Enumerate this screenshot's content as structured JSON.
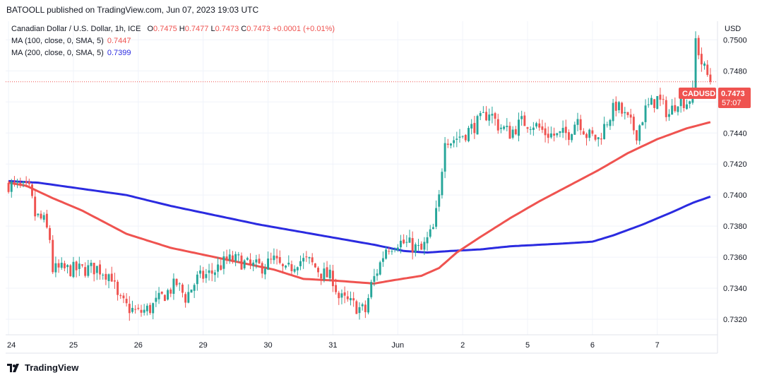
{
  "header": {
    "published_by": "BATOOLL published on TradingView.com, Jun 07, 2023 19:03 UTC"
  },
  "legend": {
    "symbol_title": "Canadian Dollar / U.S. Dollar, 1h, ICE",
    "o_label": "O",
    "o_value": "0.7475",
    "h_label": "H",
    "h_value": "0.7477",
    "l_label": "L",
    "l_value": "0.7473",
    "c_label": "C",
    "c_value": "0.7473",
    "change": "+0.0001 (+0.01%)",
    "ma100_label": "MA (100, close, 0, SMA, 5)",
    "ma100_value": "0.7447",
    "ma200_label": "MA (200, close, 0, SMA, 5)",
    "ma200_value": "0.7399"
  },
  "price_axis": {
    "currency": "USD",
    "tag_symbol": "CADUSD",
    "tag_price": "0.7473",
    "tag_countdown": "57:07"
  },
  "footer": {
    "brand": "TradingView"
  },
  "colors": {
    "up": "#26a69a",
    "down": "#ef5350",
    "ma100": "#ef5350",
    "ma200": "#2b2be0",
    "grid": "#f0f3fa"
  },
  "chart_data": {
    "type": "candlestick",
    "symbol": "CADUSD",
    "ylim": [
      0.731,
      0.7512
    ],
    "yticks": [
      0.732,
      0.734,
      0.736,
      0.738,
      0.74,
      0.742,
      0.744,
      0.746,
      0.748,
      0.75
    ],
    "ytick_labels": [
      "0.7320",
      "0.7340",
      "0.7360",
      "0.7380",
      "0.7400",
      "0.7420",
      "0.7440",
      "0.7460",
      "0.7480",
      "0.7500"
    ],
    "xticks": [
      {
        "label": "24",
        "bar": 0
      },
      {
        "label": "25",
        "bar": 22
      },
      {
        "label": "26",
        "bar": 44
      },
      {
        "label": "29",
        "bar": 66
      },
      {
        "label": "30",
        "bar": 88
      },
      {
        "label": "31",
        "bar": 110
      },
      {
        "label": "Jun",
        "bar": 132
      },
      {
        "label": "2",
        "bar": 154
      },
      {
        "label": "5",
        "bar": 176
      },
      {
        "label": "6",
        "bar": 198
      },
      {
        "label": "7",
        "bar": 220
      }
    ],
    "last_price": 0.7473,
    "close_anchors": [
      [
        0,
        0.7407
      ],
      [
        4,
        0.7405
      ],
      [
        7,
        0.7403
      ],
      [
        8,
        0.7396
      ],
      [
        9,
        0.7387
      ],
      [
        12,
        0.7383
      ],
      [
        14,
        0.7372
      ],
      [
        15,
        0.7352
      ],
      [
        20,
        0.7352
      ],
      [
        25,
        0.7352
      ],
      [
        30,
        0.7353
      ],
      [
        35,
        0.7348
      ],
      [
        37,
        0.7333
      ],
      [
        40,
        0.7328
      ],
      [
        44,
        0.7324
      ],
      [
        48,
        0.7327
      ],
      [
        53,
        0.7336
      ],
      [
        57,
        0.7343
      ],
      [
        60,
        0.7334
      ],
      [
        64,
        0.7346
      ],
      [
        69,
        0.735
      ],
      [
        74,
        0.7358
      ],
      [
        78,
        0.7358
      ],
      [
        82,
        0.7354
      ],
      [
        86,
        0.7354
      ],
      [
        90,
        0.7358
      ],
      [
        94,
        0.735
      ],
      [
        98,
        0.7358
      ],
      [
        102,
        0.7357
      ],
      [
        106,
        0.735
      ],
      [
        110,
        0.7346
      ],
      [
        112,
        0.7334
      ],
      [
        116,
        0.733
      ],
      [
        121,
        0.7325
      ],
      [
        123,
        0.7342
      ],
      [
        126,
        0.7356
      ],
      [
        128,
        0.7366
      ],
      [
        132,
        0.737
      ],
      [
        136,
        0.7368
      ],
      [
        140,
        0.7364
      ],
      [
        144,
        0.7378
      ],
      [
        146,
        0.7398
      ],
      [
        148,
        0.7438
      ],
      [
        150,
        0.7435
      ],
      [
        155,
        0.744
      ],
      [
        160,
        0.7448
      ],
      [
        163,
        0.7454
      ],
      [
        166,
        0.7445
      ],
      [
        170,
        0.744
      ],
      [
        174,
        0.7447
      ],
      [
        178,
        0.7446
      ],
      [
        182,
        0.744
      ],
      [
        186,
        0.7438
      ],
      [
        190,
        0.744
      ],
      [
        193,
        0.745
      ],
      [
        196,
        0.7439
      ],
      [
        200,
        0.7436
      ],
      [
        203,
        0.7448
      ],
      [
        206,
        0.7458
      ],
      [
        210,
        0.7448
      ],
      [
        213,
        0.744
      ],
      [
        216,
        0.7455
      ],
      [
        220,
        0.7462
      ],
      [
        224,
        0.7452
      ],
      [
        227,
        0.7462
      ],
      [
        230,
        0.746
      ],
      [
        232,
        0.7465
      ],
      [
        233,
        0.75
      ],
      [
        235,
        0.7485
      ],
      [
        238,
        0.7473
      ]
    ],
    "ma100": [
      [
        0,
        0.7408
      ],
      [
        6,
        0.7406
      ],
      [
        15,
        0.7398
      ],
      [
        25,
        0.739
      ],
      [
        40,
        0.7375
      ],
      [
        55,
        0.7366
      ],
      [
        70,
        0.736
      ],
      [
        80,
        0.7356
      ],
      [
        90,
        0.7352
      ],
      [
        100,
        0.7346
      ],
      [
        110,
        0.7345
      ],
      [
        117,
        0.7344
      ],
      [
        124,
        0.7343
      ],
      [
        130,
        0.7345
      ],
      [
        140,
        0.7348
      ],
      [
        146,
        0.7353
      ],
      [
        152,
        0.7363
      ],
      [
        160,
        0.7373
      ],
      [
        170,
        0.7385
      ],
      [
        180,
        0.7396
      ],
      [
        190,
        0.7406
      ],
      [
        200,
        0.7416
      ],
      [
        210,
        0.7427
      ],
      [
        220,
        0.7436
      ],
      [
        230,
        0.7443
      ],
      [
        238,
        0.7447
      ]
    ],
    "ma200": [
      [
        0,
        0.7409
      ],
      [
        10,
        0.7408
      ],
      [
        25,
        0.7404
      ],
      [
        40,
        0.74
      ],
      [
        55,
        0.7393
      ],
      [
        70,
        0.7387
      ],
      [
        85,
        0.7381
      ],
      [
        100,
        0.7376
      ],
      [
        112,
        0.7372
      ],
      [
        124,
        0.7368
      ],
      [
        134,
        0.7364
      ],
      [
        142,
        0.7363
      ],
      [
        150,
        0.7364
      ],
      [
        160,
        0.7365
      ],
      [
        170,
        0.7367
      ],
      [
        180,
        0.7368
      ],
      [
        190,
        0.7369
      ],
      [
        198,
        0.737
      ],
      [
        205,
        0.7374
      ],
      [
        215,
        0.7381
      ],
      [
        225,
        0.7389
      ],
      [
        232,
        0.7395
      ],
      [
        238,
        0.7399
      ]
    ]
  }
}
